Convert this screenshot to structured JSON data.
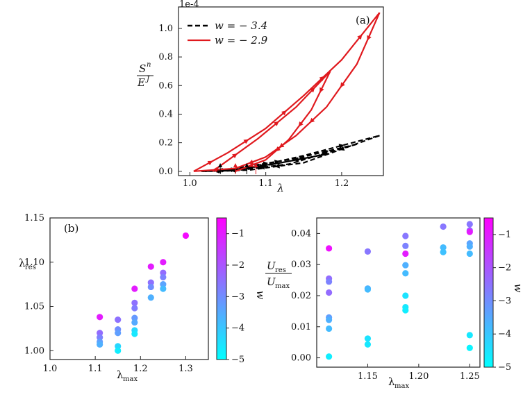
{
  "chart_data": [
    {
      "type": "line",
      "panel_label": "(a)",
      "offset_label": "1e-4",
      "xlabel": "λ",
      "ylabel": "S^n / E^J",
      "ylabel_num": "S",
      "ylabel_num_sup": "n",
      "ylabel_den": "E",
      "ylabel_den_sup": "J",
      "xlim": [
        0.985,
        1.255
      ],
      "ylim": [
        -0.03,
        1.15
      ],
      "x_ticks": [
        1.0,
        1.1,
        1.2
      ],
      "x_tick_labels": [
        "1.0",
        "1.1",
        "1.2"
      ],
      "y_ticks": [
        0.0,
        0.2,
        0.4,
        0.6,
        0.8,
        1.0
      ],
      "y_tick_labels": [
        "0.0",
        "0.2",
        "0.4",
        "0.6",
        "0.8",
        "1.0"
      ],
      "legend_position": "top-left",
      "series": [
        {
          "name": "w = − 3.4",
          "color": "#000000",
          "style": "dashed",
          "loops": [
            {
              "up": [
                [
                  1.035,
                  0.0
                ],
                [
                  1.08,
                  0.025
                ],
                [
                  1.15,
                  0.11
                ],
                [
                  1.25,
                  0.25
                ]
              ],
              "down": [
                [
                  1.25,
                  0.25
                ],
                [
                  1.15,
                  0.06
                ],
                [
                  1.08,
                  0.01
                ],
                [
                  1.035,
                  0.0
                ]
              ]
            },
            {
              "up": [
                [
                  1.015,
                  0.0
                ],
                [
                  1.06,
                  0.02
                ],
                [
                  1.14,
                  0.09
                ],
                [
                  1.22,
                  0.19
                ]
              ],
              "down": [
                [
                  1.22,
                  0.19
                ],
                [
                  1.13,
                  0.05
                ],
                [
                  1.06,
                  0.005
                ],
                [
                  1.015,
                  0.0
                ]
              ]
            },
            {
              "up": [
                [
                  1.02,
                  0.0
                ],
                [
                  1.07,
                  0.018
                ],
                [
                  1.12,
                  0.06
                ],
                [
                  1.18,
                  0.12
                ]
              ],
              "down": [
                [
                  1.18,
                  0.12
                ],
                [
                  1.1,
                  0.04
                ],
                [
                  1.05,
                  0.005
                ],
                [
                  1.02,
                  0.0
                ]
              ]
            }
          ],
          "result_arrows_x": [
            1.04,
            1.075
          ]
        },
        {
          "name": "w = − 2.9",
          "color": "#e0191e",
          "style": "solid",
          "loops": [
            {
              "up": [
                [
                  1.005,
                  0.0
                ],
                [
                  1.05,
                  0.13
                ],
                [
                  1.1,
                  0.3
                ],
                [
                  1.15,
                  0.53
                ],
                [
                  1.2,
                  0.78
                ],
                [
                  1.25,
                  1.11
                ]
              ],
              "down": [
                [
                  1.25,
                  1.11
                ],
                [
                  1.22,
                  0.75
                ],
                [
                  1.18,
                  0.45
                ],
                [
                  1.14,
                  0.25
                ],
                [
                  1.1,
                  0.1
                ],
                [
                  1.06,
                  0.02
                ],
                [
                  1.005,
                  0.0
                ]
              ]
            },
            {
              "up": [
                [
                  1.03,
                  0.0
                ],
                [
                  1.09,
                  0.23
                ],
                [
                  1.14,
                  0.45
                ],
                [
                  1.185,
                  0.7
                ]
              ],
              "down": [
                [
                  1.185,
                  0.7
                ],
                [
                  1.16,
                  0.43
                ],
                [
                  1.13,
                  0.22
                ],
                [
                  1.1,
                  0.08
                ],
                [
                  1.06,
                  0.0
                ]
              ]
            }
          ],
          "result_arrows_x": [
            1.06,
            1.087
          ]
        }
      ]
    },
    {
      "type": "scatter",
      "panel_label": "(b)",
      "xlabel": "λ",
      "xlabel_sub": "max",
      "ylabel": "λ",
      "ylabel_sub": "res",
      "xlim": [
        1.0,
        1.35
      ],
      "ylim": [
        0.99,
        1.15
      ],
      "x_ticks": [
        1.0,
        1.1,
        1.2,
        1.3
      ],
      "x_tick_labels": [
        "1.0",
        "1.1",
        "1.2",
        "1.3"
      ],
      "y_ticks": [
        1.0,
        1.05,
        1.1,
        1.15
      ],
      "y_tick_labels": [
        "1.00",
        "1.05",
        "1.10",
        "1.15"
      ],
      "colorbar": {
        "label": "w",
        "range": [
          -5,
          -0.5
        ],
        "ticks": [
          -1,
          -2,
          -3,
          -4,
          -5
        ],
        "tick_labels": [
          "−1",
          "−2",
          "−3",
          "−4",
          "−5"
        ],
        "colors": [
          "#00ffff",
          "#ff00ff"
        ]
      },
      "points": [
        {
          "x": 1.11,
          "y": 1.038,
          "w": -1.0
        },
        {
          "x": 1.11,
          "y": 1.02,
          "w": -2.4
        },
        {
          "x": 1.11,
          "y": 1.015,
          "w": -2.8
        },
        {
          "x": 1.11,
          "y": 1.01,
          "w": -3.3
        },
        {
          "x": 1.11,
          "y": 1.007,
          "w": -3.6
        },
        {
          "x": 1.15,
          "y": 1.035,
          "w": -2.5
        },
        {
          "x": 1.15,
          "y": 1.024,
          "w": -3.0
        },
        {
          "x": 1.15,
          "y": 1.02,
          "w": -3.3
        },
        {
          "x": 1.15,
          "y": 1.005,
          "w": -4.3
        },
        {
          "x": 1.15,
          "y": 1.0,
          "w": -4.7
        },
        {
          "x": 1.187,
          "y": 1.07,
          "w": -1.0
        },
        {
          "x": 1.187,
          "y": 1.054,
          "w": -2.5
        },
        {
          "x": 1.187,
          "y": 1.048,
          "w": -2.7
        },
        {
          "x": 1.187,
          "y": 1.037,
          "w": -3.2
        },
        {
          "x": 1.187,
          "y": 1.032,
          "w": -3.5
        },
        {
          "x": 1.187,
          "y": 1.023,
          "w": -4.3
        },
        {
          "x": 1.187,
          "y": 1.019,
          "w": -4.6
        },
        {
          "x": 1.223,
          "y": 1.095,
          "w": -1.0
        },
        {
          "x": 1.223,
          "y": 1.077,
          "w": -2.5
        },
        {
          "x": 1.223,
          "y": 1.072,
          "w": -3.0
        },
        {
          "x": 1.223,
          "y": 1.06,
          "w": -3.6
        },
        {
          "x": 1.25,
          "y": 1.1,
          "w": -1.0
        },
        {
          "x": 1.25,
          "y": 1.088,
          "w": -2.4
        },
        {
          "x": 1.25,
          "y": 1.083,
          "w": -2.8
        },
        {
          "x": 1.25,
          "y": 1.075,
          "w": -3.4
        },
        {
          "x": 1.25,
          "y": 1.07,
          "w": -3.8
        },
        {
          "x": 1.3,
          "y": 1.13,
          "w": -0.7
        }
      ]
    },
    {
      "type": "scatter",
      "xlabel": "λ",
      "xlabel_sub": "max",
      "ylabel_num": "U",
      "ylabel_num_sub": "res",
      "ylabel_den": "U",
      "ylabel_den_sub": "max",
      "xlim": [
        1.1,
        1.26
      ],
      "ylim": [
        -0.003,
        0.045
      ],
      "x_ticks": [
        1.15,
        1.2,
        1.25
      ],
      "x_tick_labels": [
        "1.15",
        "1.20",
        "1.25"
      ],
      "y_ticks": [
        0.0,
        0.01,
        0.02,
        0.03,
        0.04
      ],
      "y_tick_labels": [
        "0.00",
        "0.01",
        "0.02",
        "0.03",
        "0.04"
      ],
      "colorbar": {
        "label": "w",
        "range": [
          -5,
          -0.5
        ],
        "ticks": [
          -1,
          -2,
          -3,
          -4,
          -5
        ],
        "tick_labels": [
          "−1",
          "−2",
          "−3",
          "−4",
          "−5"
        ],
        "colors": [
          "#00ffff",
          "#ff00ff"
        ]
      },
      "points": [
        {
          "x": 1.112,
          "y": 0.0352,
          "w": -0.8
        },
        {
          "x": 1.112,
          "y": 0.0255,
          "w": -2.4
        },
        {
          "x": 1.112,
          "y": 0.0245,
          "w": -2.8
        },
        {
          "x": 1.112,
          "y": 0.021,
          "w": -2.4
        },
        {
          "x": 1.112,
          "y": 0.013,
          "w": -3.3
        },
        {
          "x": 1.112,
          "y": 0.0122,
          "w": -3.6
        },
        {
          "x": 1.112,
          "y": 0.0094,
          "w": -3.8
        },
        {
          "x": 1.112,
          "y": 0.0004,
          "w": -4.7
        },
        {
          "x": 1.15,
          "y": 0.0342,
          "w": -2.6
        },
        {
          "x": 1.15,
          "y": 0.0223,
          "w": -3.6
        },
        {
          "x": 1.15,
          "y": 0.022,
          "w": -3.8
        },
        {
          "x": 1.15,
          "y": 0.0062,
          "w": -4.5
        },
        {
          "x": 1.15,
          "y": 0.0043,
          "w": -4.6
        },
        {
          "x": 1.187,
          "y": 0.0392,
          "w": -2.6
        },
        {
          "x": 1.187,
          "y": 0.036,
          "w": -2.8
        },
        {
          "x": 1.187,
          "y": 0.0335,
          "w": -1.0
        },
        {
          "x": 1.187,
          "y": 0.0298,
          "w": -3.6
        },
        {
          "x": 1.187,
          "y": 0.0272,
          "w": -3.8
        },
        {
          "x": 1.187,
          "y": 0.02,
          "w": -4.5
        },
        {
          "x": 1.187,
          "y": 0.0163,
          "w": -4.6
        },
        {
          "x": 1.187,
          "y": 0.0153,
          "w": -4.7
        },
        {
          "x": 1.224,
          "y": 0.0422,
          "w": -2.6
        },
        {
          "x": 1.224,
          "y": 0.0355,
          "w": -3.8
        },
        {
          "x": 1.224,
          "y": 0.034,
          "w": -3.9
        },
        {
          "x": 1.25,
          "y": 0.043,
          "w": -2.6
        },
        {
          "x": 1.25,
          "y": 0.041,
          "w": -2.3
        },
        {
          "x": 1.25,
          "y": 0.0405,
          "w": -1.0
        },
        {
          "x": 1.25,
          "y": 0.0368,
          "w": -3.4
        },
        {
          "x": 1.25,
          "y": 0.0358,
          "w": -3.6
        },
        {
          "x": 1.25,
          "y": 0.0335,
          "w": -3.8
        },
        {
          "x": 1.25,
          "y": 0.0073,
          "w": -4.6
        },
        {
          "x": 1.25,
          "y": 0.0032,
          "w": -4.8
        }
      ]
    }
  ]
}
